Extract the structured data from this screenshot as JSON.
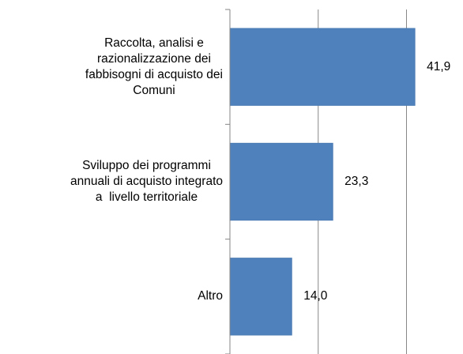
{
  "chart_data": {
    "type": "bar",
    "orientation": "horizontal",
    "categories": [
      "Raccolta, analisi e\nrazionalizzazione dei\nfabbisogni di acquisto dei\nComuni",
      "Sviluppo dei programmi\nannuali di acquisto integrato\na  livello territoriale",
      "Altro"
    ],
    "values": [
      41.9,
      23.3,
      14.0
    ],
    "value_labels": [
      "41,9",
      "23,3",
      "14,0"
    ],
    "color": "#4f81bd",
    "xlim": [
      0,
      52.8
    ],
    "xticks": [
      0,
      20,
      40
    ],
    "grid": true
  }
}
